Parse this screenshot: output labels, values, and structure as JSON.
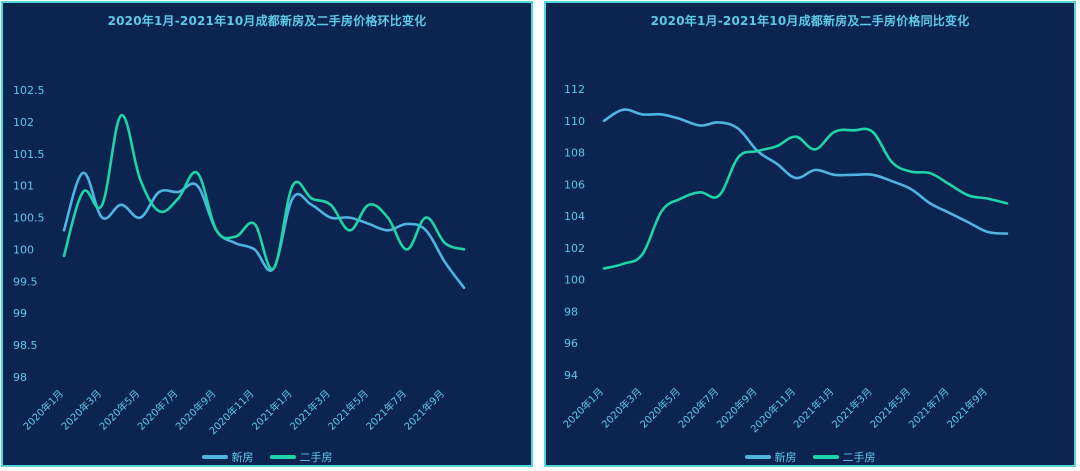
{
  "colors": {
    "new": "#4fb5e0",
    "second": "#1fd4a8",
    "axis_text": "#5ec8e8",
    "background": "#0b2550"
  },
  "legend": {
    "new": "新房",
    "second": "二手房"
  },
  "chart_data": [
    {
      "type": "line",
      "title": "2020年1月-2021年10月成都新房及二手房价格环比变化",
      "xlabel": "",
      "ylabel": "",
      "categories": [
        "2020年1月",
        "2020年2月",
        "2020年3月",
        "2020年4月",
        "2020年5月",
        "2020年6月",
        "2020年7月",
        "2020年8月",
        "2020年9月",
        "2020年10月",
        "2020年11月",
        "2020年12月",
        "2021年1月",
        "2021年2月",
        "2021年3月",
        "2021年4月",
        "2021年5月",
        "2021年6月",
        "2021年7月",
        "2021年8月",
        "2021年9月",
        "2021年10月"
      ],
      "tick_labels": [
        "2020年1月",
        "2020年3月",
        "2020年5月",
        "2020年7月",
        "2020年9月",
        "2020年11月",
        "2021年1月",
        "2021年3月",
        "2021年5月",
        "2021年7月",
        "2021年9月"
      ],
      "y_ticks": [
        "102.5",
        "102",
        "101.5",
        "101",
        "100.5",
        "100",
        "99.5",
        "99",
        "98.5",
        "98"
      ],
      "ylim": [
        98,
        102.5
      ],
      "series": [
        {
          "name": "新房",
          "values": [
            100.3,
            101.2,
            100.5,
            100.7,
            100.5,
            100.9,
            100.9,
            101.0,
            100.3,
            100.1,
            100.0,
            99.7,
            100.8,
            100.7,
            100.5,
            100.5,
            100.4,
            100.3,
            100.4,
            100.3,
            99.8,
            99.4
          ]
        },
        {
          "name": "二手房",
          "values": [
            99.9,
            100.9,
            100.7,
            102.1,
            101.1,
            100.6,
            100.8,
            101.2,
            100.3,
            100.2,
            100.4,
            99.7,
            101.0,
            100.8,
            100.7,
            100.3,
            100.7,
            100.5,
            100.0,
            100.5,
            100.1,
            100.0
          ]
        }
      ]
    },
    {
      "type": "line",
      "title": "2020年1月-2021年10月成都新房及二手房价格同比变化",
      "xlabel": "",
      "ylabel": "",
      "categories": [
        "2020年1月",
        "2020年2月",
        "2020年3月",
        "2020年4月",
        "2020年5月",
        "2020年6月",
        "2020年7月",
        "2020年8月",
        "2020年9月",
        "2020年10月",
        "2020年11月",
        "2020年12月",
        "2021年1月",
        "2021年2月",
        "2021年3月",
        "2021年4月",
        "2021年5月",
        "2021年6月",
        "2021年7月",
        "2021年8月",
        "2021年9月",
        "2021年10月"
      ],
      "tick_labels": [
        "2020年1月",
        "2020年3月",
        "2020年5月",
        "2020年7月",
        "2020年9月",
        "2020年11月",
        "2021年1月",
        "2021年3月",
        "2021年5月",
        "2021年7月",
        "2021年9月"
      ],
      "y_ticks": [
        "112",
        "110",
        "108",
        "106",
        "104",
        "102",
        "100",
        "98",
        "96",
        "94"
      ],
      "ylim": [
        94,
        112
      ],
      "series": [
        {
          "name": "新房",
          "values": [
            110.0,
            110.7,
            110.4,
            110.4,
            110.1,
            109.7,
            109.9,
            109.5,
            108.1,
            107.3,
            106.4,
            106.9,
            106.6,
            106.6,
            106.6,
            106.2,
            105.7,
            104.8,
            104.2,
            103.6,
            103.0,
            102.9
          ]
        },
        {
          "name": "二手房",
          "values": [
            100.7,
            101.0,
            101.6,
            104.3,
            105.1,
            105.5,
            105.3,
            107.7,
            108.1,
            108.4,
            109.0,
            108.2,
            109.3,
            109.4,
            109.3,
            107.4,
            106.8,
            106.7,
            106.0,
            105.3,
            105.1,
            104.8
          ]
        }
      ]
    }
  ]
}
